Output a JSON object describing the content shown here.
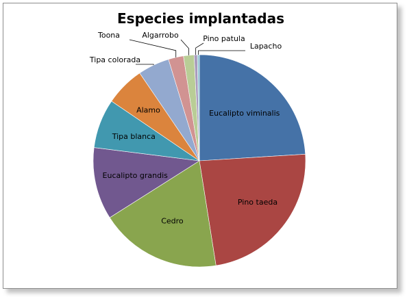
{
  "chart_data": {
    "type": "pie",
    "title": "Especies implantadas",
    "slices": [
      {
        "label": "Eucalipto viminalis",
        "value": 24.0,
        "color": "#4572a7"
      },
      {
        "label": "Pino taeda",
        "value": 23.5,
        "color": "#aa4643"
      },
      {
        "label": "Cedro",
        "value": 18.5,
        "color": "#89a54e"
      },
      {
        "label": "Eucalipto grandis",
        "value": 11.0,
        "color": "#71588f"
      },
      {
        "label": "Tipa blanca",
        "value": 7.5,
        "color": "#4198af"
      },
      {
        "label": "Alamo",
        "value": 6.0,
        "color": "#db843d"
      },
      {
        "label": "Tipa colorada",
        "value": 4.8,
        "color": "#93a9cf"
      },
      {
        "label": "Toona",
        "value": 2.3,
        "color": "#d19392"
      },
      {
        "label": "Algarrobo",
        "value": 1.6,
        "color": "#b9cd96"
      },
      {
        "label": "Pino patula",
        "value": 0.5,
        "color": "#a99bbd"
      },
      {
        "label": "Lapacho",
        "value": 0.3,
        "color": "#92c7d4"
      }
    ],
    "legend": "none",
    "labels": "category-names"
  }
}
